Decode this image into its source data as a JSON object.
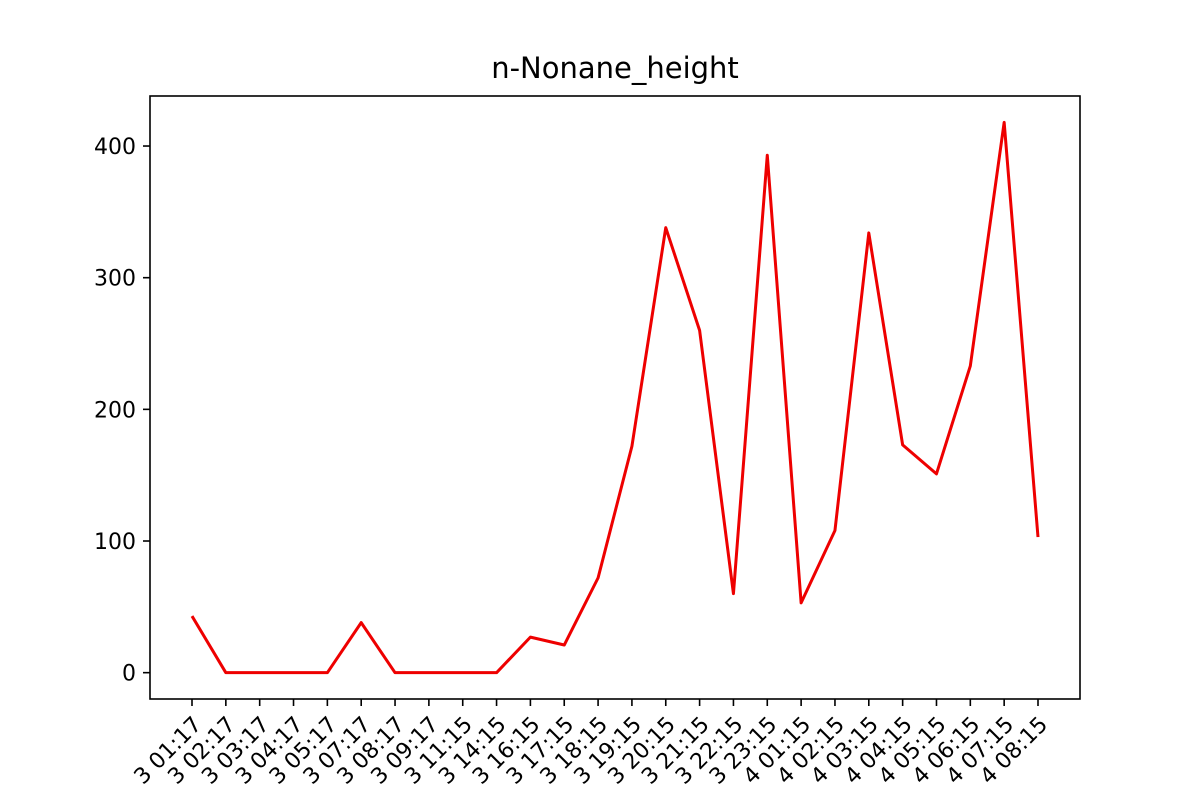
{
  "chart_data": {
    "type": "line",
    "title": "n-Nonane_height",
    "xlabel": "",
    "ylabel": "",
    "x": [
      "3 01:17",
      "3 02:17",
      "3 03:17",
      "3 04:17",
      "3 05:17",
      "3 07:17",
      "3 08:17",
      "3 09:17",
      "3 11:15",
      "3 14:15",
      "3 16:15",
      "3 17:15",
      "3 18:15",
      "3 19:15",
      "3 20:15",
      "3 21:15",
      "3 22:15",
      "3 23:15",
      "4 01:15",
      "4 02:15",
      "4 03:15",
      "4 04:15",
      "4 05:15",
      "4 06:15",
      "4 07:15",
      "4 08:15"
    ],
    "series": [
      {
        "color": "#ee0000",
        "values": [
          43,
          0,
          0,
          0,
          0,
          38,
          0,
          0,
          0,
          0,
          27,
          21,
          72,
          172,
          338,
          260,
          60,
          393,
          53,
          108,
          334,
          173,
          151,
          233,
          418,
          103
        ]
      }
    ],
    "ylim": [
      -20,
      438
    ],
    "yticks": [
      0,
      100,
      200,
      300,
      400
    ],
    "grid": false,
    "legend": "none"
  }
}
